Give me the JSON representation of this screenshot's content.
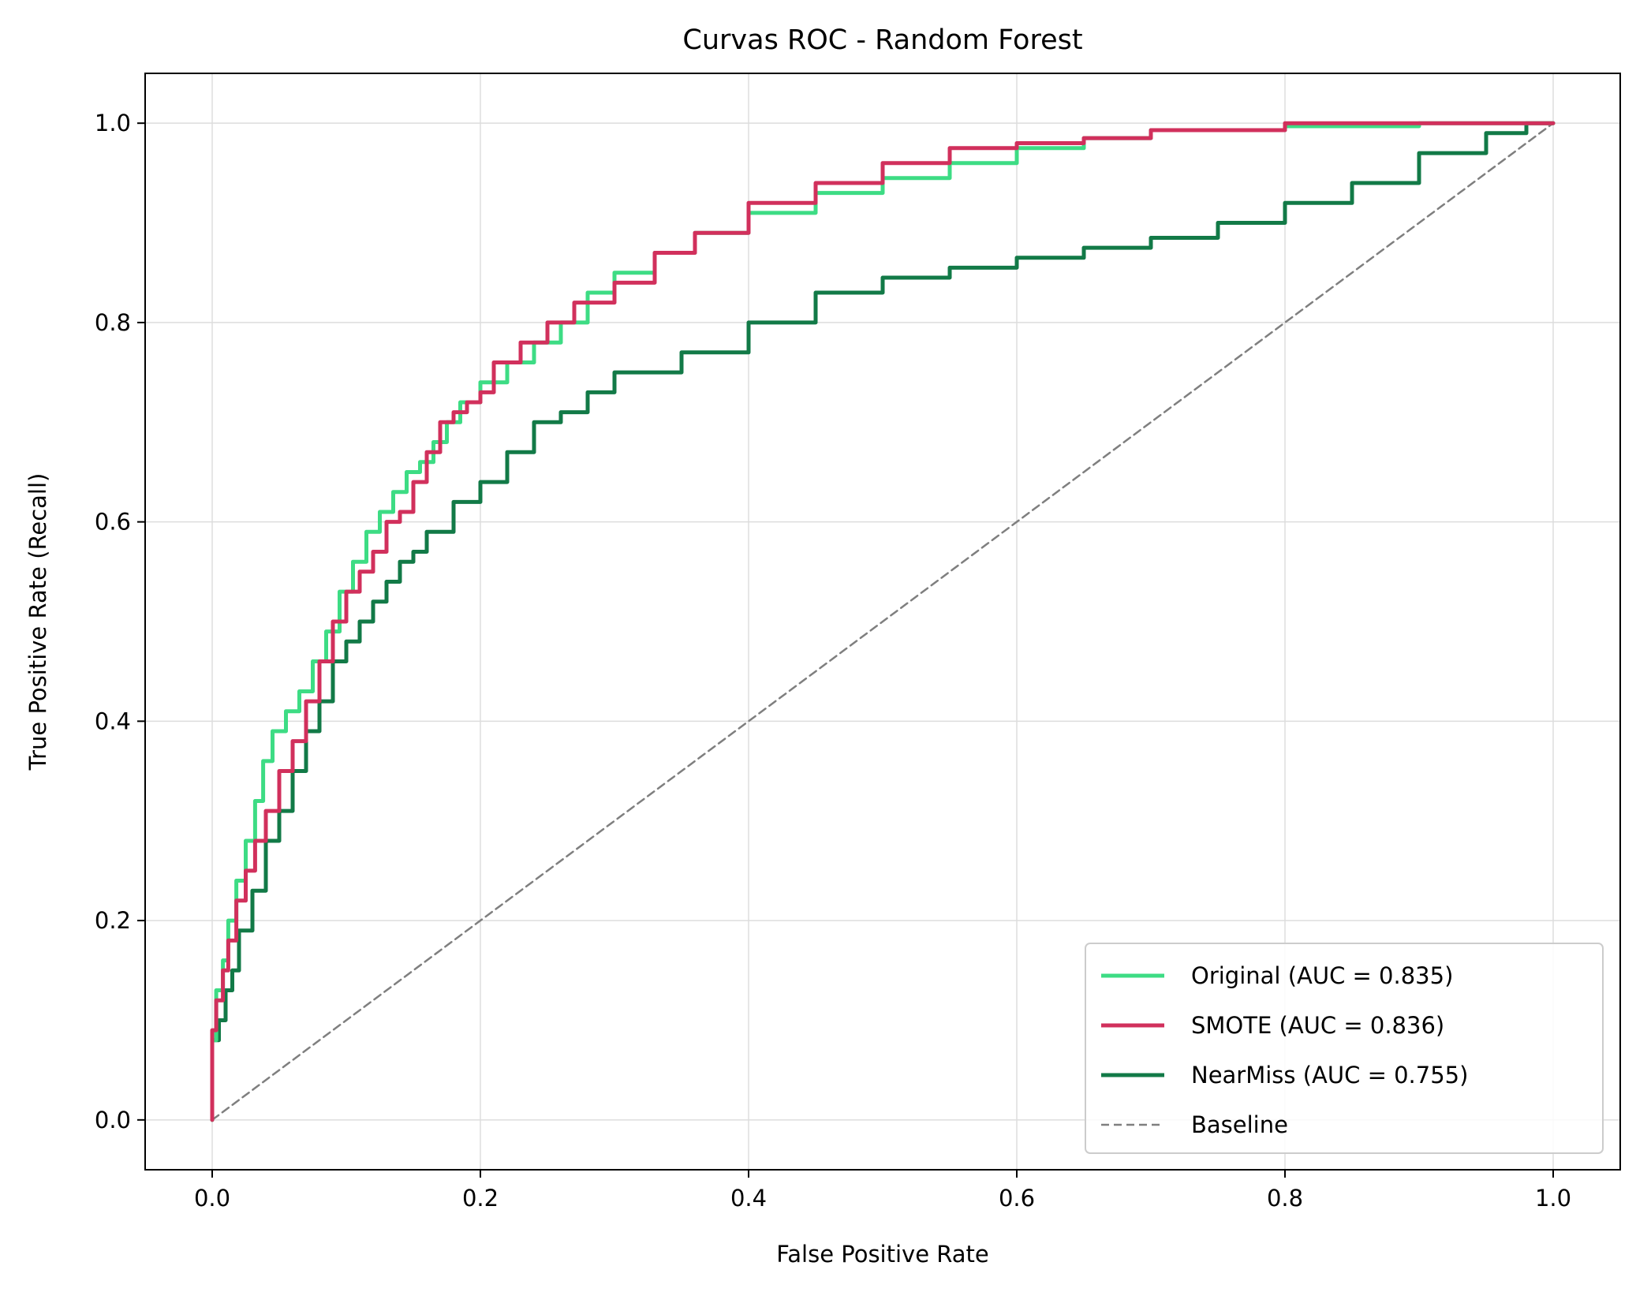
{
  "chart_data": {
    "type": "line",
    "title": "Curvas ROC - Random Forest",
    "xlabel": "False Positive Rate",
    "ylabel": "True Positive Rate (Recall)",
    "xlim": [
      -0.05,
      1.05
    ],
    "ylim": [
      -0.05,
      1.05
    ],
    "xticks": [
      0.0,
      0.2,
      0.4,
      0.6,
      0.8,
      1.0
    ],
    "yticks": [
      0.0,
      0.2,
      0.4,
      0.6,
      0.8,
      1.0
    ],
    "xtick_labels": [
      "0.0",
      "0.2",
      "0.4",
      "0.6",
      "0.8",
      "1.0"
    ],
    "ytick_labels": [
      "0.0",
      "0.2",
      "0.4",
      "0.6",
      "0.8",
      "1.0"
    ],
    "grid": true,
    "legend_position": "lower-right",
    "series": [
      {
        "name": "Original (AUC = 0.835)",
        "color": "#3ddc84",
        "style": "solid",
        "x": [
          0.0,
          0.003,
          0.008,
          0.012,
          0.018,
          0.025,
          0.032,
          0.038,
          0.045,
          0.055,
          0.065,
          0.075,
          0.085,
          0.095,
          0.105,
          0.115,
          0.125,
          0.135,
          0.145,
          0.155,
          0.165,
          0.175,
          0.185,
          0.2,
          0.22,
          0.24,
          0.26,
          0.28,
          0.3,
          0.33,
          0.36,
          0.4,
          0.45,
          0.5,
          0.55,
          0.6,
          0.65,
          0.7,
          0.8,
          0.9,
          1.0
        ],
        "y": [
          0.0,
          0.08,
          0.13,
          0.16,
          0.2,
          0.24,
          0.28,
          0.32,
          0.36,
          0.39,
          0.41,
          0.43,
          0.46,
          0.49,
          0.53,
          0.56,
          0.59,
          0.61,
          0.63,
          0.65,
          0.66,
          0.68,
          0.7,
          0.72,
          0.74,
          0.76,
          0.78,
          0.8,
          0.83,
          0.85,
          0.87,
          0.89,
          0.91,
          0.93,
          0.945,
          0.96,
          0.975,
          0.985,
          0.993,
          0.997,
          1.0
        ]
      },
      {
        "name": "SMOTE (AUC = 0.836)",
        "color": "#d1305c",
        "style": "solid",
        "x": [
          0.0,
          0.003,
          0.008,
          0.012,
          0.018,
          0.025,
          0.032,
          0.04,
          0.05,
          0.06,
          0.07,
          0.08,
          0.09,
          0.1,
          0.11,
          0.12,
          0.13,
          0.14,
          0.15,
          0.16,
          0.17,
          0.18,
          0.19,
          0.2,
          0.21,
          0.23,
          0.25,
          0.27,
          0.3,
          0.33,
          0.36,
          0.4,
          0.45,
          0.5,
          0.55,
          0.6,
          0.65,
          0.7,
          0.8,
          0.9,
          1.0
        ],
        "y": [
          0.0,
          0.09,
          0.12,
          0.15,
          0.18,
          0.22,
          0.25,
          0.28,
          0.31,
          0.35,
          0.38,
          0.42,
          0.46,
          0.5,
          0.53,
          0.55,
          0.57,
          0.6,
          0.61,
          0.64,
          0.67,
          0.7,
          0.71,
          0.72,
          0.73,
          0.76,
          0.78,
          0.8,
          0.82,
          0.84,
          0.87,
          0.89,
          0.92,
          0.94,
          0.96,
          0.975,
          0.98,
          0.985,
          0.993,
          1.0,
          1.0
        ]
      },
      {
        "name": "NearMiss (AUC = 0.755)",
        "color": "#127a47",
        "style": "solid",
        "x": [
          0.0,
          0.005,
          0.01,
          0.015,
          0.02,
          0.03,
          0.04,
          0.05,
          0.06,
          0.07,
          0.08,
          0.09,
          0.1,
          0.11,
          0.12,
          0.13,
          0.14,
          0.15,
          0.16,
          0.18,
          0.2,
          0.22,
          0.24,
          0.26,
          0.28,
          0.3,
          0.35,
          0.4,
          0.45,
          0.5,
          0.55,
          0.6,
          0.65,
          0.7,
          0.75,
          0.8,
          0.85,
          0.9,
          0.95,
          0.98,
          1.0
        ],
        "y": [
          0.0,
          0.08,
          0.1,
          0.13,
          0.15,
          0.19,
          0.23,
          0.28,
          0.31,
          0.35,
          0.39,
          0.42,
          0.46,
          0.48,
          0.5,
          0.52,
          0.54,
          0.56,
          0.57,
          0.59,
          0.62,
          0.64,
          0.67,
          0.7,
          0.71,
          0.73,
          0.75,
          0.77,
          0.8,
          0.83,
          0.845,
          0.855,
          0.865,
          0.875,
          0.885,
          0.9,
          0.92,
          0.94,
          0.97,
          0.99,
          1.0
        ]
      },
      {
        "name": "Baseline",
        "color": "#7f7f7f",
        "style": "dashed",
        "x": [
          0.0,
          1.0
        ],
        "y": [
          0.0,
          1.0
        ]
      }
    ]
  }
}
